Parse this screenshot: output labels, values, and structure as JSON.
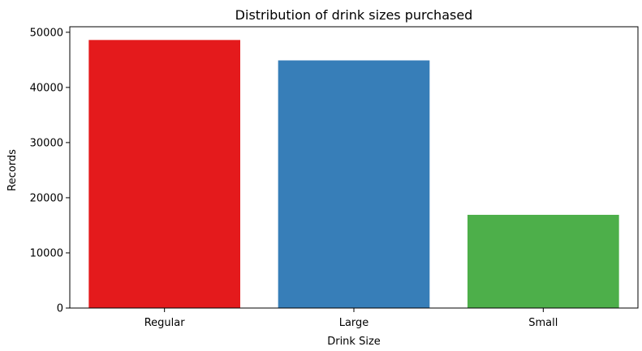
{
  "chart_data": {
    "type": "bar",
    "title": "Distribution of drink sizes purchased",
    "xlabel": "Drink Size",
    "ylabel": "Records",
    "categories": [
      "Regular",
      "Large",
      "Small"
    ],
    "values": [
      48600,
      44900,
      16900
    ],
    "colors": [
      "#e41a1c",
      "#377eb8",
      "#4daf4a"
    ],
    "ylim": [
      0,
      51000
    ],
    "yticks": [
      0,
      10000,
      20000,
      30000,
      40000,
      50000
    ],
    "ytick_labels": [
      "0",
      "10000",
      "20000",
      "30000",
      "40000",
      "50000"
    ],
    "grid": false,
    "legend": "none"
  }
}
